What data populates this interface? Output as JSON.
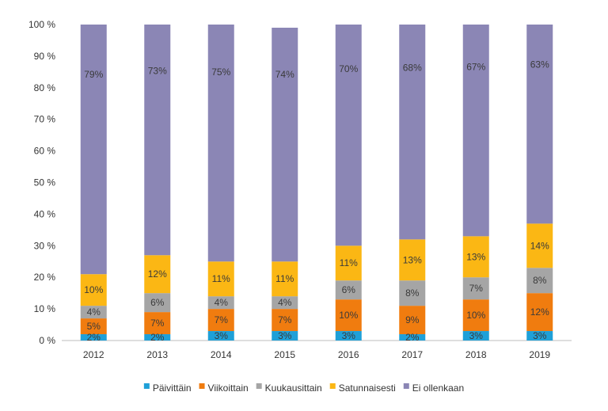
{
  "chart_data": {
    "type": "bar",
    "stacked": true,
    "categories": [
      "2012",
      "2013",
      "2014",
      "2015",
      "2016",
      "2017",
      "2018",
      "2019"
    ],
    "ylim": [
      0,
      100
    ],
    "y_ticks": [
      0,
      10,
      20,
      30,
      40,
      50,
      60,
      70,
      80,
      90,
      100
    ],
    "y_tick_labels": [
      "0 %",
      "10 %",
      "20 %",
      "30 %",
      "40 %",
      "50 %",
      "60 %",
      "70 %",
      "80 %",
      "90 %",
      "100 %"
    ],
    "grid": false,
    "legend_position": "bottom",
    "series": [
      {
        "name": "Päivittäin",
        "color": "#1fa0d8",
        "values": [
          2,
          2,
          3,
          3,
          3,
          2,
          3,
          3
        ],
        "labels": [
          "2%",
          "2%",
          "3%",
          "3%",
          "3%",
          "2%",
          "3%",
          "3%"
        ]
      },
      {
        "name": "Viikoittain",
        "color": "#f07c0f",
        "values": [
          5,
          7,
          7,
          7,
          10,
          9,
          10,
          12
        ],
        "labels": [
          "5%",
          "7%",
          "7%",
          "7%",
          "10%",
          "9%",
          "10%",
          "12%"
        ]
      },
      {
        "name": "Kuukausittain",
        "color": "#a5a5a5",
        "values": [
          4,
          6,
          4,
          4,
          6,
          8,
          7,
          8
        ],
        "labels": [
          "4%",
          "6%",
          "4%",
          "4%",
          "6%",
          "8%",
          "7%",
          "8%"
        ]
      },
      {
        "name": "Satunnaisesti",
        "color": "#fbb714",
        "values": [
          10,
          12,
          11,
          11,
          11,
          13,
          13,
          14
        ],
        "labels": [
          "10%",
          "12%",
          "11%",
          "11%",
          "11%",
          "13%",
          "13%",
          "14%"
        ]
      },
      {
        "name": "Ei ollenkaan",
        "color": "#8b86b5",
        "values": [
          79,
          73,
          75,
          74,
          70,
          68,
          67,
          63
        ],
        "labels": [
          "79%",
          "73%",
          "75%",
          "74%",
          "70%",
          "68%",
          "67%",
          "63%"
        ]
      }
    ]
  }
}
